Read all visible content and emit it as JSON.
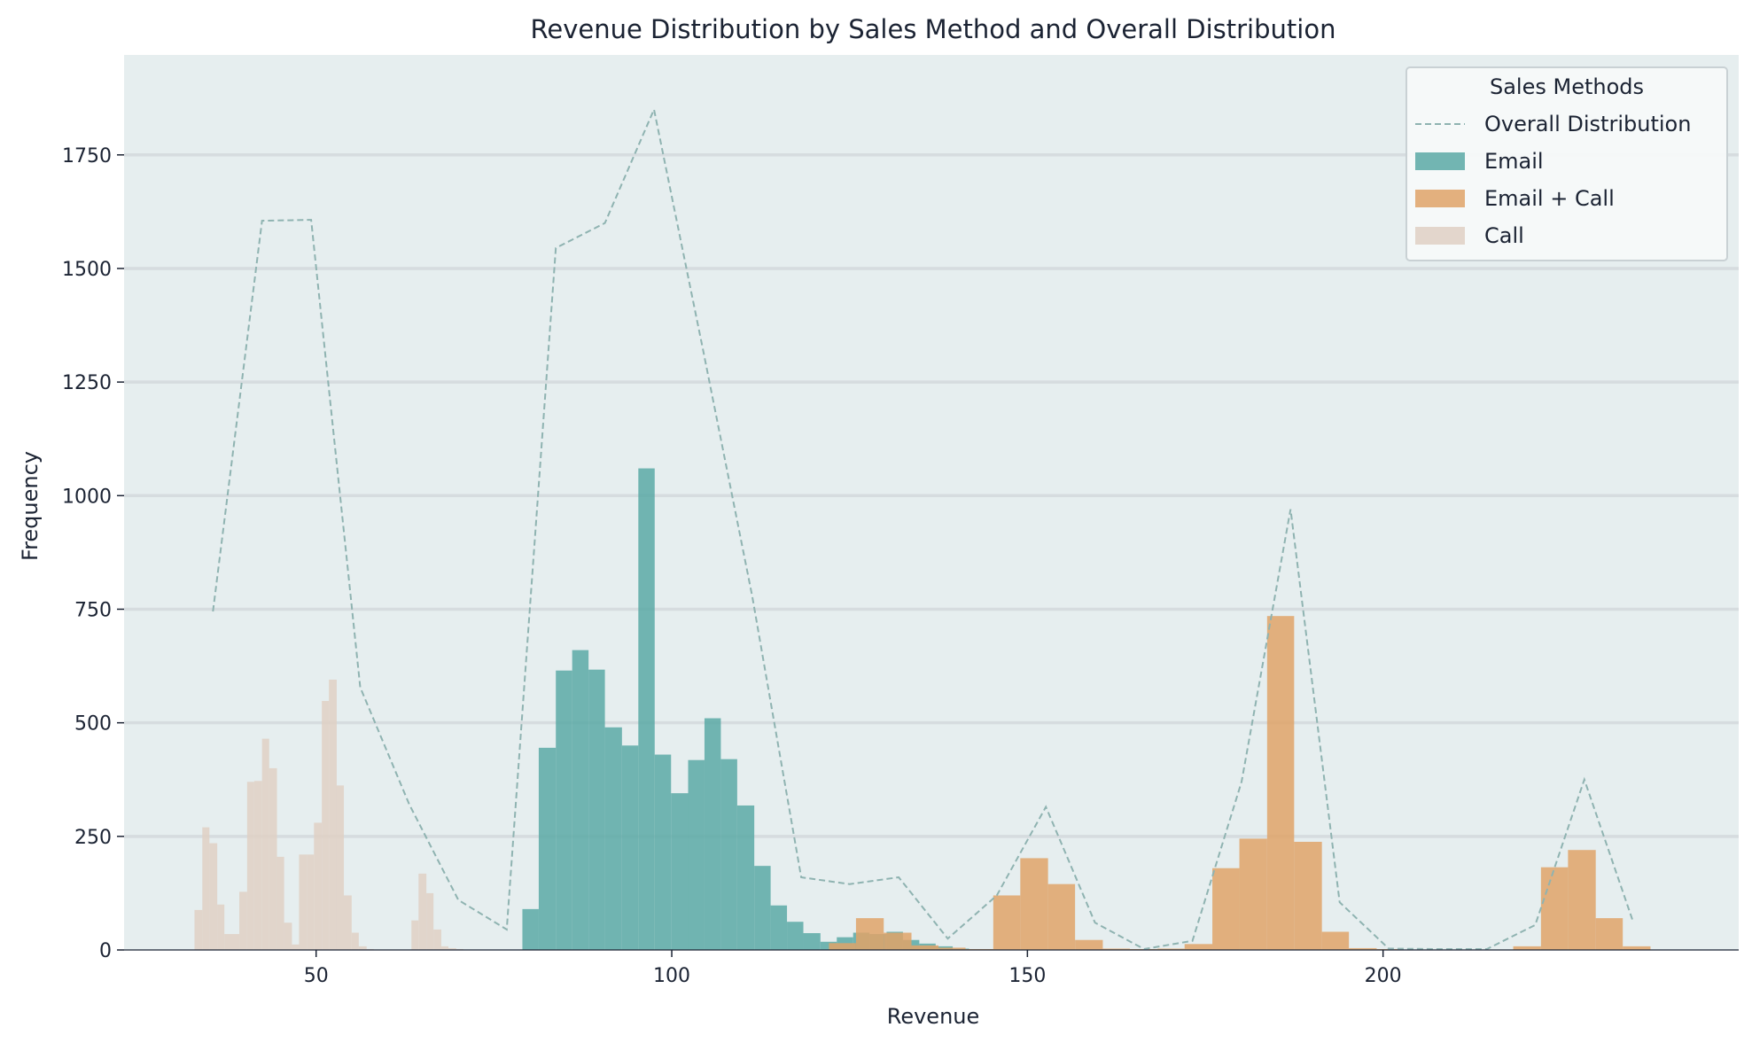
{
  "chart_data": {
    "type": "bar",
    "title": "Revenue Distribution by Sales Method and Overall Distribution",
    "xlabel": "Revenue",
    "ylabel": "Frequency",
    "xlim": [
      23,
      250
    ],
    "ylim": [
      0,
      1970
    ],
    "xticks": [
      50,
      100,
      150,
      200
    ],
    "yticks": [
      0,
      250,
      500,
      750,
      1000,
      1250,
      1500,
      1750
    ],
    "grid": "horizontal",
    "legend": {
      "title": "Sales Methods",
      "placement": "top-right"
    },
    "background": "#e6eeef",
    "series": [
      {
        "name": "Email",
        "kind": "histogram",
        "color": "#5ba9a6",
        "bins": [
          {
            "x0": 79.0,
            "x1": 81.3,
            "count": 90
          },
          {
            "x0": 81.3,
            "x1": 83.7,
            "count": 445
          },
          {
            "x0": 83.7,
            "x1": 86.0,
            "count": 615
          },
          {
            "x0": 86.0,
            "x1": 88.3,
            "count": 660
          },
          {
            "x0": 88.3,
            "x1": 90.6,
            "count": 617
          },
          {
            "x0": 90.6,
            "x1": 93.0,
            "count": 490
          },
          {
            "x0": 93.0,
            "x1": 95.3,
            "count": 450
          },
          {
            "x0": 95.3,
            "x1": 97.6,
            "count": 1060
          },
          {
            "x0": 97.6,
            "x1": 99.9,
            "count": 430
          },
          {
            "x0": 99.9,
            "x1": 102.3,
            "count": 345
          },
          {
            "x0": 102.3,
            "x1": 104.6,
            "count": 418
          },
          {
            "x0": 104.6,
            "x1": 106.9,
            "count": 510
          },
          {
            "x0": 106.9,
            "x1": 109.2,
            "count": 420
          },
          {
            "x0": 109.2,
            "x1": 111.6,
            "count": 318
          },
          {
            "x0": 111.6,
            "x1": 113.9,
            "count": 185
          },
          {
            "x0": 113.9,
            "x1": 116.2,
            "count": 98
          },
          {
            "x0": 116.2,
            "x1": 118.5,
            "count": 62
          },
          {
            "x0": 118.5,
            "x1": 120.9,
            "count": 37
          },
          {
            "x0": 120.9,
            "x1": 123.2,
            "count": 18
          },
          {
            "x0": 123.2,
            "x1": 125.5,
            "count": 28
          },
          {
            "x0": 125.5,
            "x1": 127.8,
            "count": 38
          },
          {
            "x0": 127.8,
            "x1": 130.2,
            "count": 35
          },
          {
            "x0": 130.2,
            "x1": 132.5,
            "count": 40
          },
          {
            "x0": 132.5,
            "x1": 134.8,
            "count": 22
          },
          {
            "x0": 134.8,
            "x1": 137.1,
            "count": 14
          },
          {
            "x0": 137.1,
            "x1": 139.5,
            "count": 8
          },
          {
            "x0": 139.5,
            "x1": 141.8,
            "count": 3
          }
        ]
      },
      {
        "name": "Email + Call",
        "kind": "histogram",
        "color": "#dfa368",
        "bins": [
          {
            "x0": 122.1,
            "x1": 125.9,
            "count": 15
          },
          {
            "x0": 125.9,
            "x1": 129.8,
            "count": 70
          },
          {
            "x0": 129.8,
            "x1": 133.7,
            "count": 38
          },
          {
            "x0": 133.7,
            "x1": 137.5,
            "count": 10
          },
          {
            "x0": 137.5,
            "x1": 141.3,
            "count": 5
          },
          {
            "x0": 141.3,
            "x1": 145.2,
            "count": 2
          },
          {
            "x0": 145.2,
            "x1": 149.0,
            "count": 120
          },
          {
            "x0": 149.0,
            "x1": 152.9,
            "count": 202
          },
          {
            "x0": 152.9,
            "x1": 156.7,
            "count": 145
          },
          {
            "x0": 156.7,
            "x1": 160.6,
            "count": 22
          },
          {
            "x0": 160.6,
            "x1": 164.4,
            "count": 3
          },
          {
            "x0": 164.4,
            "x1": 168.3,
            "count": 2
          },
          {
            "x0": 168.3,
            "x1": 172.1,
            "count": 3
          },
          {
            "x0": 172.1,
            "x1": 176.0,
            "count": 13
          },
          {
            "x0": 176.0,
            "x1": 179.8,
            "count": 180
          },
          {
            "x0": 179.8,
            "x1": 183.7,
            "count": 245
          },
          {
            "x0": 183.7,
            "x1": 187.5,
            "count": 735
          },
          {
            "x0": 187.5,
            "x1": 191.4,
            "count": 238
          },
          {
            "x0": 191.4,
            "x1": 195.2,
            "count": 40
          },
          {
            "x0": 195.2,
            "x1": 199.1,
            "count": 4
          },
          {
            "x0": 199.1,
            "x1": 202.9,
            "count": 2
          },
          {
            "x0": 202.9,
            "x1": 206.8,
            "count": 1
          },
          {
            "x0": 206.8,
            "x1": 210.6,
            "count": 1
          },
          {
            "x0": 210.6,
            "x1": 214.5,
            "count": 1
          },
          {
            "x0": 214.5,
            "x1": 218.3,
            "count": 1
          },
          {
            "x0": 218.3,
            "x1": 222.2,
            "count": 8
          },
          {
            "x0": 222.2,
            "x1": 226.0,
            "count": 182
          },
          {
            "x0": 226.0,
            "x1": 229.9,
            "count": 220
          },
          {
            "x0": 229.9,
            "x1": 233.7,
            "count": 70
          },
          {
            "x0": 233.7,
            "x1": 237.6,
            "count": 8
          }
        ]
      },
      {
        "name": "Call",
        "kind": "histogram",
        "color": "#dfd0c4",
        "bins": [
          {
            "x0": 32.9,
            "x1": 34.0,
            "count": 88
          },
          {
            "x0": 34.0,
            "x1": 35.0,
            "count": 270
          },
          {
            "x0": 35.0,
            "x1": 36.1,
            "count": 235
          },
          {
            "x0": 36.1,
            "x1": 37.1,
            "count": 100
          },
          {
            "x0": 37.1,
            "x1": 38.2,
            "count": 35
          },
          {
            "x0": 38.2,
            "x1": 39.2,
            "count": 35
          },
          {
            "x0": 39.2,
            "x1": 40.3,
            "count": 128
          },
          {
            "x0": 40.3,
            "x1": 41.3,
            "count": 370
          },
          {
            "x0": 41.3,
            "x1": 42.4,
            "count": 372
          },
          {
            "x0": 42.4,
            "x1": 43.4,
            "count": 465
          },
          {
            "x0": 43.4,
            "x1": 44.5,
            "count": 400
          },
          {
            "x0": 44.5,
            "x1": 45.5,
            "count": 205
          },
          {
            "x0": 45.5,
            "x1": 46.6,
            "count": 60
          },
          {
            "x0": 46.6,
            "x1": 47.6,
            "count": 12
          },
          {
            "x0": 47.6,
            "x1": 48.7,
            "count": 210
          },
          {
            "x0": 48.7,
            "x1": 49.7,
            "count": 210
          },
          {
            "x0": 49.7,
            "x1": 50.8,
            "count": 280
          },
          {
            "x0": 50.8,
            "x1": 51.8,
            "count": 548
          },
          {
            "x0": 51.8,
            "x1": 52.9,
            "count": 595
          },
          {
            "x0": 52.9,
            "x1": 53.9,
            "count": 362
          },
          {
            "x0": 53.9,
            "x1": 55.0,
            "count": 120
          },
          {
            "x0": 55.0,
            "x1": 56.0,
            "count": 38
          },
          {
            "x0": 56.0,
            "x1": 57.1,
            "count": 8
          },
          {
            "x0": 57.1,
            "x1": 58.1,
            "count": 2
          },
          {
            "x0": 58.1,
            "x1": 59.2,
            "count": 1
          },
          {
            "x0": 59.2,
            "x1": 60.2,
            "count": 1
          },
          {
            "x0": 60.2,
            "x1": 61.3,
            "count": 1
          },
          {
            "x0": 61.3,
            "x1": 62.3,
            "count": 1
          },
          {
            "x0": 62.3,
            "x1": 63.4,
            "count": 1
          },
          {
            "x0": 63.4,
            "x1": 64.4,
            "count": 65
          },
          {
            "x0": 64.4,
            "x1": 65.5,
            "count": 168
          },
          {
            "x0": 65.5,
            "x1": 66.5,
            "count": 125
          },
          {
            "x0": 66.5,
            "x1": 67.6,
            "count": 45
          },
          {
            "x0": 67.6,
            "x1": 68.6,
            "count": 8
          },
          {
            "x0": 68.6,
            "x1": 69.7,
            "count": 4
          },
          {
            "x0": 69.7,
            "x1": 70.7,
            "count": 2
          }
        ]
      },
      {
        "name": "Overall Distribution",
        "kind": "line",
        "style": "dashed",
        "color": "#8fb3b1",
        "x": [
          35.5,
          42.4,
          49.3,
          56.2,
          63.1,
          70.0,
          76.8,
          83.7,
          90.6,
          97.5,
          104.4,
          111.3,
          118.2,
          125.0,
          131.9,
          138.8,
          145.7,
          152.6,
          159.5,
          166.4,
          173.2,
          180.1,
          187.0,
          193.9,
          200.8,
          207.7,
          214.6,
          221.4,
          228.3,
          235.2
        ],
        "y": [
          745,
          1605,
          1607,
          578,
          320,
          110,
          45,
          1545,
          1600,
          1850,
          1320,
          780,
          160,
          145,
          160,
          25,
          120,
          315,
          60,
          2,
          20,
          370,
          970,
          105,
          3,
          2,
          2,
          55,
          375,
          60
        ]
      }
    ]
  }
}
